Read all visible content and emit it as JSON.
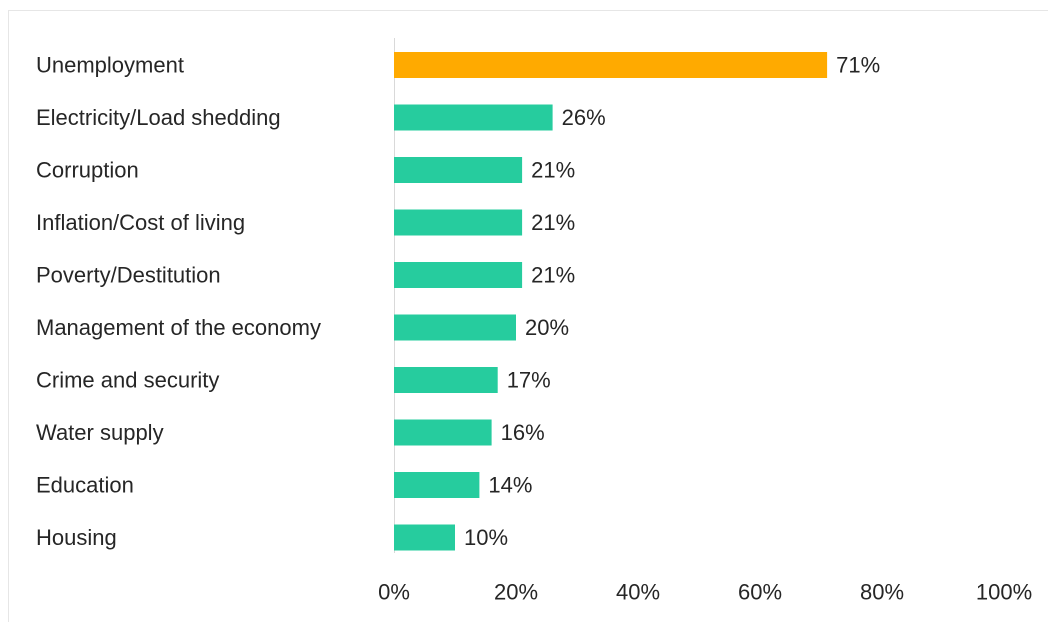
{
  "chart_data": {
    "type": "bar",
    "orientation": "horizontal",
    "categories": [
      "Unemployment",
      "Electricity/Load shedding",
      "Corruption",
      "Inflation/Cost of living",
      "Poverty/Destitution",
      "Management of the economy",
      "Crime and security",
      "Water supply",
      "Education",
      "Housing"
    ],
    "values": [
      71,
      26,
      21,
      21,
      21,
      20,
      17,
      16,
      14,
      10
    ],
    "value_labels": [
      "71%",
      "26%",
      "21%",
      "21%",
      "21%",
      "20%",
      "17%",
      "16%",
      "14%",
      "10%"
    ],
    "xlim": [
      0,
      100
    ],
    "x_ticks": [
      0,
      20,
      40,
      60,
      80,
      100
    ],
    "x_tick_labels": [
      "0%",
      "20%",
      "40%",
      "60%",
      "80%",
      "100%"
    ],
    "highlight_index": 0,
    "colors": {
      "highlight": "#FFAA00",
      "bar": "#26CC9E",
      "axis": "#d9d9d9",
      "text": "#262626"
    },
    "grid": false,
    "legend": "none"
  }
}
